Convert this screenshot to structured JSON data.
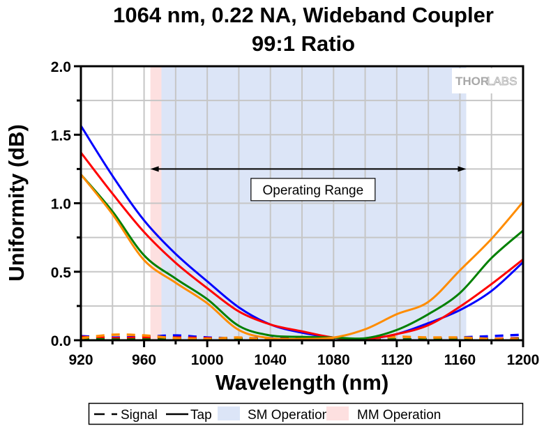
{
  "chart_data": {
    "type": "line",
    "title": "1064 nm, 0.22 NA, Wideband Coupler",
    "subtitle": "99:1 Ratio",
    "xlabel": "Wavelength (nm)",
    "ylabel": "Uniformity (dB)",
    "xlim": [
      920,
      1200
    ],
    "ylim": [
      0,
      2.0
    ],
    "xticks": [
      920,
      960,
      1000,
      1040,
      1080,
      1120,
      1160,
      1200
    ],
    "xtick_labels": [
      "920",
      "960",
      "1000",
      "1040",
      "1080",
      "1120",
      "1160",
      "1200"
    ],
    "yticks": [
      0,
      0.5,
      1.0,
      1.5,
      2.0
    ],
    "ytick_labels": [
      "0.0",
      "0.5",
      "1.0",
      "1.5",
      "2.0"
    ],
    "grid": true,
    "watermark": {
      "bold": "THOR",
      "outline": "LABS"
    },
    "x": [
      920,
      940,
      960,
      980,
      1000,
      1020,
      1040,
      1060,
      1080,
      1100,
      1120,
      1140,
      1160,
      1180,
      1200
    ],
    "series": [
      {
        "name": "Tap (blue)",
        "style": "solid",
        "color": "#0000ff",
        "values": [
          1.565,
          1.2,
          0.875,
          0.63,
          0.43,
          0.24,
          0.115,
          0.055,
          0.02,
          0.01,
          0.045,
          0.125,
          0.22,
          0.36,
          0.57
        ]
      },
      {
        "name": "Tap (red)",
        "style": "solid",
        "color": "#ff0000",
        "values": [
          1.37,
          1.07,
          0.79,
          0.565,
          0.38,
          0.21,
          0.115,
          0.065,
          0.02,
          0.01,
          0.045,
          0.11,
          0.245,
          0.41,
          0.59
        ]
      },
      {
        "name": "Tap (green)",
        "style": "solid",
        "color": "#008000",
        "values": [
          1.21,
          0.94,
          0.62,
          0.45,
          0.3,
          0.105,
          0.035,
          0.025,
          0.02,
          0.015,
          0.075,
          0.19,
          0.345,
          0.6,
          0.8
        ]
      },
      {
        "name": "Tap (orange)",
        "style": "solid",
        "color": "#ff8c00",
        "values": [
          1.21,
          0.92,
          0.585,
          0.42,
          0.27,
          0.075,
          0.015,
          0.01,
          0.02,
          0.08,
          0.19,
          0.28,
          0.51,
          0.74,
          1.01
        ]
      },
      {
        "name": "Signal (blue)",
        "style": "dashed",
        "color": "#0000ff",
        "values": [
          0.03,
          0.02,
          0.025,
          0.035,
          0.02,
          0.015,
          0.015,
          0.01,
          0.01,
          0.005,
          0.005,
          0.01,
          0.02,
          0.03,
          0.04
        ]
      },
      {
        "name": "Signal (red)",
        "style": "dashed",
        "color": "#ff0000",
        "values": [
          0.025,
          0.015,
          0.02,
          0.02,
          0.015,
          0.01,
          0.01,
          0.01,
          0.01,
          0.005,
          0.005,
          0.005,
          0.01,
          0.01,
          0.015
        ]
      },
      {
        "name": "Signal (green)",
        "style": "dashed",
        "color": "#008000",
        "values": [
          0.01,
          0.005,
          0.005,
          0.005,
          0.005,
          0.01,
          0.005,
          0.005,
          0.005,
          0.005,
          0.005,
          0.005,
          0.005,
          0.005,
          0.01
        ]
      },
      {
        "name": "Signal (orange)",
        "style": "dashed",
        "color": "#ff8c00",
        "values": [
          0.015,
          0.04,
          0.035,
          0.015,
          0.01,
          0.02,
          0.005,
          0.005,
          0.005,
          0.01,
          0.025,
          0.02,
          0.02,
          0.01,
          0.005
        ]
      }
    ],
    "bands": [
      {
        "name": "MM Operation",
        "x_range": [
          964,
          971
        ],
        "color": "#fde0e0"
      },
      {
        "name": "SM Operation",
        "x_range": [
          971,
          1164
        ],
        "color": "#dce5f7"
      }
    ],
    "annotations": [
      {
        "type": "double-arrow",
        "x_range": [
          964,
          1164
        ],
        "y": 1.25,
        "label": "Operating Range",
        "label_x": 1067,
        "label_y": 1.1
      }
    ],
    "legend": {
      "placement": "bottom",
      "entries": [
        {
          "label": "Signal",
          "kind": "dashed-line",
          "color": "#000000"
        },
        {
          "label": "Tap",
          "kind": "solid-line",
          "color": "#000000"
        },
        {
          "label": "SM Operation",
          "kind": "patch",
          "color": "#dce5f7"
        },
        {
          "label": "MM Operation",
          "kind": "patch",
          "color": "#fde0e0"
        }
      ]
    }
  }
}
